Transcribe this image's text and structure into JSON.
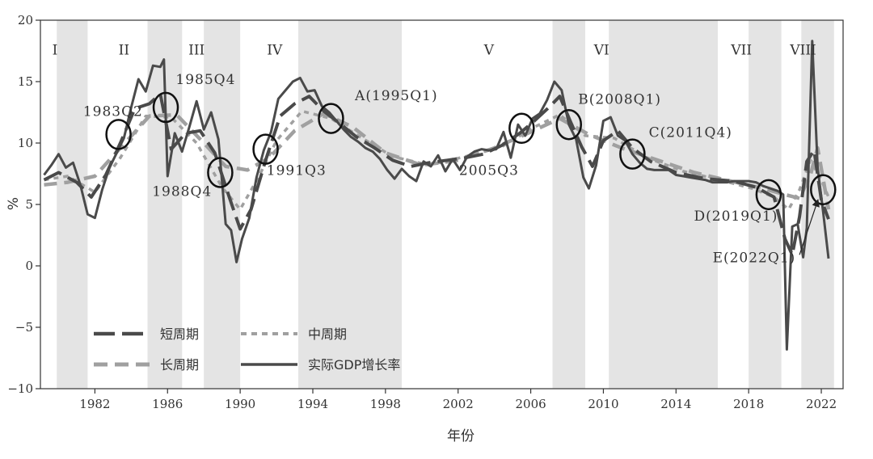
{
  "chart_data": {
    "type": "line",
    "ylabel": "%",
    "xlabel": "年份",
    "xlim": [
      1979.0,
      2023.2
    ],
    "ylim": [
      -10,
      20
    ],
    "x_ticks": [
      1982,
      1986,
      1990,
      1994,
      1998,
      2002,
      2006,
      2010,
      2014,
      2018,
      2022
    ],
    "y_ticks": [
      -10,
      -5,
      0,
      5,
      10,
      15,
      20
    ],
    "grid": false,
    "legend_position": "bottom-left",
    "shaded_periods": [
      [
        1979.9,
        1981.6
      ],
      [
        1984.9,
        1986.8
      ],
      [
        1988.0,
        1990.0
      ],
      [
        1993.2,
        1998.9
      ],
      [
        2007.2,
        2009.0
      ],
      [
        2010.3,
        2016.3
      ],
      [
        2018.0,
        2019.8
      ],
      [
        2020.9,
        2022.7
      ]
    ],
    "cycle_labels": [
      {
        "text": "I",
        "x": 1979.8,
        "y": 17.2
      },
      {
        "text": "II",
        "x": 1983.6,
        "y": 17.2
      },
      {
        "text": "III",
        "x": 1987.6,
        "y": 17.2
      },
      {
        "text": "IV",
        "x": 1991.9,
        "y": 17.2
      },
      {
        "text": "V",
        "x": 2003.7,
        "y": 17.2
      },
      {
        "text": "VI",
        "x": 2009.9,
        "y": 17.2
      },
      {
        "text": "VII",
        "x": 2017.6,
        "y": 17.2
      },
      {
        "text": "VIII",
        "x": 2021.0,
        "y": 17.2
      }
    ],
    "annotations": [
      {
        "text": "1983Q2",
        "x": 1983.0,
        "y": 12.2
      },
      {
        "text": "1985Q4",
        "x": 1988.1,
        "y": 14.8
      },
      {
        "text": "1988Q4",
        "x": 1986.8,
        "y": 5.7
      },
      {
        "text": "1991Q3",
        "x": 1993.1,
        "y": 7.4
      },
      {
        "text": "A(1995Q1)",
        "x": 1998.6,
        "y": 13.5
      },
      {
        "text": "2005Q3",
        "x": 2003.7,
        "y": 7.4
      },
      {
        "text": "B(2008Q1)",
        "x": 2010.9,
        "y": 13.2
      },
      {
        "text": "C(2011Q4)",
        "x": 2014.8,
        "y": 10.5
      },
      {
        "text": "D(2019Q1)",
        "x": 2017.3,
        "y": 3.7
      },
      {
        "text": "E(2022Q1)",
        "x": 2018.3,
        "y": 0.3
      }
    ],
    "circles": [
      {
        "x": 1983.3,
        "y": 10.7
      },
      {
        "x": 1985.9,
        "y": 12.9
      },
      {
        "x": 1988.9,
        "y": 7.6
      },
      {
        "x": 1991.4,
        "y": 9.5
      },
      {
        "x": 1995.0,
        "y": 12.0
      },
      {
        "x": 2005.5,
        "y": 11.2
      },
      {
        "x": 2008.1,
        "y": 11.5
      },
      {
        "x": 2011.6,
        "y": 9.1
      },
      {
        "x": 2019.1,
        "y": 5.8
      },
      {
        "x": 2022.1,
        "y": 6.2
      }
    ],
    "arrow": {
      "from": [
        2020.8,
        0.9
      ],
      "to": [
        2021.8,
        5.3
      ]
    },
    "series": [
      {
        "name": "实际GDP增长率",
        "style": "solid-dark",
        "x": [
          1979.2,
          1979.6,
          1980.0,
          1980.4,
          1980.8,
          1981.2,
          1981.6,
          1982.0,
          1982.4,
          1982.8,
          1983.2,
          1983.6,
          1984.0,
          1984.4,
          1984.8,
          1985.2,
          1985.6,
          1985.8,
          1986.0,
          1986.4,
          1986.8,
          1987.2,
          1987.6,
          1988.0,
          1988.4,
          1988.8,
          1989.2,
          1989.5,
          1989.8,
          1990.1,
          1990.5,
          1990.9,
          1991.3,
          1991.7,
          1992.1,
          1992.5,
          1992.9,
          1993.3,
          1993.7,
          1994.1,
          1994.5,
          1994.9,
          1995.3,
          1995.7,
          1996.1,
          1996.5,
          1996.9,
          1997.3,
          1997.7,
          1998.1,
          1998.5,
          1998.9,
          1999.3,
          1999.7,
          2000.1,
          2000.5,
          2000.9,
          2001.3,
          2001.7,
          2002.1,
          2002.5,
          2002.9,
          2003.3,
          2003.7,
          2004.1,
          2004.5,
          2004.9,
          2005.3,
          2005.7,
          2006.1,
          2006.5,
          2006.9,
          2007.3,
          2007.7,
          2008.1,
          2008.5,
          2008.9,
          2009.2,
          2009.6,
          2010.0,
          2010.4,
          2010.8,
          2011.2,
          2011.6,
          2012.0,
          2012.4,
          2012.8,
          2013.2,
          2013.6,
          2014.0,
          2014.4,
          2014.8,
          2015.2,
          2015.6,
          2016.0,
          2016.4,
          2016.8,
          2017.2,
          2017.6,
          2018.0,
          2018.4,
          2018.8,
          2019.2,
          2019.6,
          2019.9,
          2020.1,
          2020.4,
          2020.7,
          2021.0,
          2021.2,
          2021.5,
          2021.8,
          2022.1,
          2022.4
        ],
        "values": [
          7.4,
          8.2,
          9.1,
          8.0,
          8.4,
          6.6,
          4.2,
          3.9,
          6.2,
          8.0,
          9.2,
          10.4,
          12.9,
          15.2,
          14.2,
          16.3,
          16.2,
          16.8,
          7.3,
          10.8,
          9.3,
          11.3,
          13.4,
          11.1,
          12.5,
          10.3,
          3.4,
          2.9,
          0.3,
          2.2,
          3.9,
          7.2,
          9.4,
          10.9,
          13.6,
          14.3,
          15.0,
          15.3,
          14.2,
          14.3,
          13.0,
          12.5,
          11.8,
          11.1,
          10.5,
          10.1,
          9.6,
          9.3,
          8.7,
          7.8,
          7.1,
          7.9,
          7.3,
          6.9,
          8.5,
          8.1,
          9.0,
          7.7,
          8.7,
          7.8,
          8.9,
          9.3,
          9.5,
          9.4,
          9.5,
          10.9,
          8.8,
          11.5,
          10.6,
          12.0,
          12.4,
          13.5,
          15.0,
          14.3,
          11.5,
          10.3,
          7.2,
          6.3,
          8.2,
          11.8,
          12.1,
          10.6,
          10.2,
          9.1,
          8.4,
          7.9,
          7.8,
          7.8,
          7.8,
          7.4,
          7.3,
          7.2,
          7.1,
          7.0,
          6.8,
          6.8,
          6.8,
          6.9,
          6.9,
          6.9,
          6.8,
          6.5,
          6.3,
          6.1,
          5.8,
          -6.8,
          3.2,
          3.4,
          0.7,
          3.1,
          18.3,
          8.0,
          4.4,
          0.6
        ]
      },
      {
        "name": "短周期",
        "style": "long-dash-dark",
        "x": [
          1979.2,
          1980.0,
          1981.0,
          1981.8,
          1982.6,
          1983.4,
          1984.2,
          1985.0,
          1985.6,
          1986.2,
          1987.0,
          1987.8,
          1988.6,
          1989.4,
          1990.0,
          1990.6,
          1991.4,
          1992.2,
          1993.0,
          1993.8,
          1994.6,
          1995.4,
          1996.4,
          1997.4,
          1998.4,
          1999.4,
          2000.4,
          2001.4,
          2002.4,
          2003.4,
          2004.4,
          2005.4,
          2006.2,
          2007.0,
          2007.6,
          2008.2,
          2008.8,
          2009.4,
          2010.0,
          2010.8,
          2011.6,
          2012.6,
          2014.0,
          2015.6,
          2017.2,
          2018.4,
          2019.4,
          2020.0,
          2020.4,
          2020.8,
          2021.2,
          2021.6,
          2022.0,
          2022.4
        ],
        "values": [
          7.0,
          7.6,
          6.8,
          5.6,
          7.4,
          10.0,
          12.8,
          13.2,
          14.0,
          9.5,
          10.8,
          11.0,
          9.2,
          5.6,
          3.0,
          4.6,
          8.6,
          12.2,
          13.2,
          13.8,
          12.6,
          11.7,
          10.5,
          9.6,
          8.6,
          8.1,
          8.4,
          8.6,
          8.8,
          9.1,
          9.8,
          10.8,
          11.8,
          12.9,
          13.8,
          11.7,
          9.7,
          8.1,
          10.2,
          11.0,
          9.6,
          8.5,
          7.6,
          7.1,
          6.9,
          6.4,
          5.6,
          2.2,
          0.9,
          4.0,
          8.5,
          9.4,
          5.4,
          3.8
        ]
      },
      {
        "name": "中周期",
        "style": "dotted-gray",
        "x": [
          1979.2,
          1980.5,
          1982.0,
          1983.4,
          1984.8,
          1986.2,
          1987.6,
          1989.0,
          1990.0,
          1991.0,
          1992.0,
          1993.4,
          1995.0,
          1996.6,
          1998.4,
          2000.4,
          2002.4,
          2004.4,
          2006.2,
          2007.6,
          2009.0,
          2010.6,
          2012.4,
          2014.4,
          2016.4,
          2018.2,
          2019.4,
          2020.2,
          2020.8,
          2021.4,
          2022.0,
          2022.4
        ],
        "values": [
          7.0,
          7.3,
          6.0,
          8.8,
          12.2,
          12.1,
          10.0,
          6.4,
          4.6,
          7.2,
          10.2,
          12.6,
          12.0,
          10.5,
          8.9,
          8.2,
          8.9,
          9.7,
          11.3,
          12.3,
          10.6,
          10.4,
          8.8,
          7.7,
          7.0,
          6.3,
          5.6,
          4.6,
          6.2,
          8.6,
          7.0,
          5.6
        ]
      },
      {
        "name": "长周期",
        "style": "medium-dash-gray",
        "x": [
          1979.2,
          1980.5,
          1982.0,
          1983.4,
          1985.0,
          1986.5,
          1988.0,
          1989.2,
          1990.4,
          1991.6,
          1993.0,
          1994.6,
          1996.2,
          1998.0,
          2000.0,
          2002.0,
          2004.0,
          2006.0,
          2007.6,
          2009.2,
          2011.0,
          2013.0,
          2015.0,
          2017.0,
          2018.8,
          2020.0,
          2020.8,
          2021.4,
          2021.8,
          2022.4
        ],
        "values": [
          6.6,
          6.8,
          7.3,
          9.6,
          12.2,
          12.3,
          10.0,
          8.1,
          7.8,
          8.8,
          11.0,
          12.4,
          11.3,
          9.2,
          8.2,
          8.6,
          9.6,
          10.9,
          12.0,
          10.7,
          9.6,
          8.6,
          7.6,
          6.9,
          6.3,
          5.8,
          5.5,
          7.4,
          9.6,
          4.6
        ]
      }
    ]
  },
  "legend": {
    "items": [
      {
        "label": "短周期",
        "style": "long-dash-dark"
      },
      {
        "label": "中周期",
        "style": "dotted-gray"
      },
      {
        "label": "长周期",
        "style": "medium-dash-gray"
      },
      {
        "label": "实际GDP增长率",
        "style": "solid-dark"
      }
    ]
  },
  "colors": {
    "shade": "#e4e4e4",
    "dark_line": "#4a4a4a",
    "gray_line": "#a0a0a0",
    "axis": "#333333"
  }
}
